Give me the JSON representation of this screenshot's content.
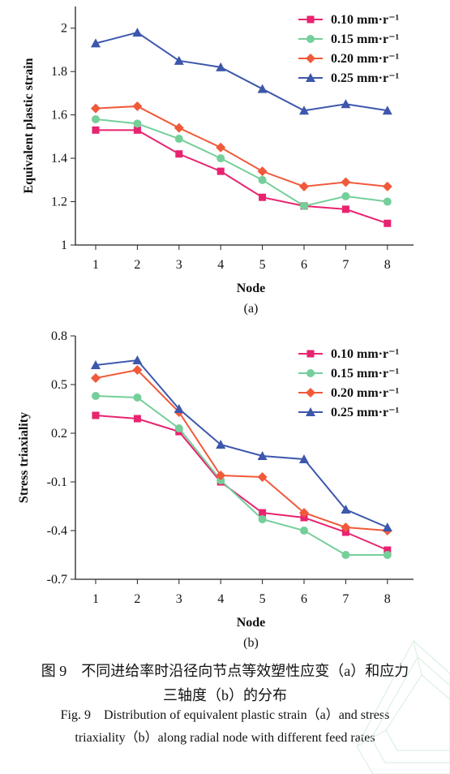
{
  "chart_data": [
    {
      "type": "line",
      "panel_label": "(a)",
      "xlabel": "Node",
      "ylabel": "Equivalent plastic strain",
      "categories": [
        "1",
        "2",
        "3",
        "4",
        "5",
        "6",
        "7",
        "8"
      ],
      "ylim": [
        1,
        2.1
      ],
      "yticks": [
        "1",
        "1.2",
        "1.4",
        "1.6",
        "1.8",
        "2"
      ],
      "legend_position": "top-right",
      "series": [
        {
          "name": "0.10 mm·r⁻¹",
          "color": "#e8236f",
          "marker": "square",
          "values": [
            1.53,
            1.53,
            1.42,
            1.34,
            1.22,
            1.18,
            1.165,
            1.1
          ]
        },
        {
          "name": "0.15 mm·r⁻¹",
          "color": "#74cf9a",
          "marker": "circle",
          "values": [
            1.58,
            1.56,
            1.49,
            1.4,
            1.3,
            1.18,
            1.225,
            1.2
          ]
        },
        {
          "name": "0.20 mm·r⁻¹",
          "color": "#f05a3a",
          "marker": "diamond",
          "values": [
            1.63,
            1.64,
            1.54,
            1.45,
            1.34,
            1.27,
            1.29,
            1.27
          ]
        },
        {
          "name": "0.25 mm·r⁻¹",
          "color": "#3d57ac",
          "marker": "triangle",
          "values": [
            1.93,
            1.98,
            1.85,
            1.82,
            1.72,
            1.62,
            1.65,
            1.62
          ]
        }
      ]
    },
    {
      "type": "line",
      "panel_label": "(b)",
      "xlabel": "Node",
      "ylabel": "Stress triaxiality",
      "categories": [
        "1",
        "2",
        "3",
        "4",
        "5",
        "6",
        "7",
        "8"
      ],
      "ylim": [
        -0.7,
        0.8
      ],
      "yticks": [
        "0.8",
        "0.5",
        "0.2",
        "-0.1",
        "-0.4",
        "-0.7"
      ],
      "ytick_values": [
        0.8,
        0.5,
        0.2,
        -0.1,
        -0.4,
        -0.7
      ],
      "legend_position": "top-right",
      "series": [
        {
          "name": "0.10 mm·r⁻¹",
          "color": "#e8236f",
          "marker": "square",
          "values": [
            0.31,
            0.29,
            0.21,
            -0.1,
            -0.29,
            -0.32,
            -0.41,
            -0.52
          ]
        },
        {
          "name": "0.15 mm·r⁻¹",
          "color": "#74cf9a",
          "marker": "circle",
          "values": [
            0.43,
            0.42,
            0.23,
            -0.09,
            -0.33,
            -0.4,
            -0.55,
            -0.55
          ]
        },
        {
          "name": "0.20 mm·r⁻¹",
          "color": "#f05a3a",
          "marker": "diamond",
          "values": [
            0.54,
            0.59,
            0.33,
            -0.06,
            -0.07,
            -0.29,
            -0.38,
            -0.4
          ]
        },
        {
          "name": "0.25 mm·r⁻¹",
          "color": "#3d57ac",
          "marker": "triangle",
          "values": [
            0.62,
            0.65,
            0.35,
            0.13,
            0.06,
            0.04,
            -0.27,
            -0.38
          ]
        }
      ]
    }
  ],
  "caption": {
    "cn_line1": "图 9　不同进给率时沿径向节点等效塑性应变（a）和应力",
    "cn_line2": "三轴度（b）的分布",
    "en_line1": "Fig. 9　Distribution of equivalent plastic strain（a）and stress",
    "en_line2": "triaxiality（b）along radial node with different feed rates"
  }
}
